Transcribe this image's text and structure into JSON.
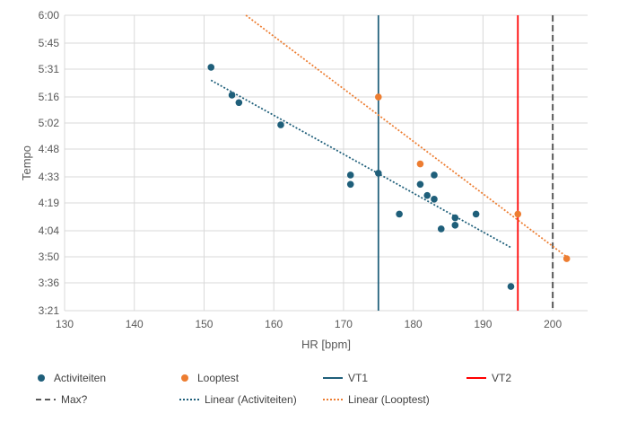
{
  "chart_data": {
    "type": "scatter",
    "xlabel": "HR [bpm]",
    "ylabel": "Tempo",
    "xlim": [
      130,
      205
    ],
    "ylim_seconds": [
      201,
      360
    ],
    "x_ticks": [
      130,
      140,
      150,
      160,
      170,
      180,
      190,
      200
    ],
    "y_ticks": [
      {
        "label": "6:00",
        "seconds": 360
      },
      {
        "label": "5:45",
        "seconds": 345
      },
      {
        "label": "5:31",
        "seconds": 331
      },
      {
        "label": "5:16",
        "seconds": 316
      },
      {
        "label": "5:02",
        "seconds": 302
      },
      {
        "label": "4:48",
        "seconds": 288
      },
      {
        "label": "4:33",
        "seconds": 273
      },
      {
        "label": "4:19",
        "seconds": 259
      },
      {
        "label": "4:04",
        "seconds": 244
      },
      {
        "label": "3:50",
        "seconds": 230
      },
      {
        "label": "3:36",
        "seconds": 216
      },
      {
        "label": "3:21",
        "seconds": 201
      }
    ],
    "grid": true,
    "legend_position": "bottom",
    "series": [
      {
        "name": "Activiteiten",
        "kind": "points",
        "color": "#1F5F7A",
        "points": [
          [
            151,
            332
          ],
          [
            154,
            317
          ],
          [
            155,
            313
          ],
          [
            161,
            301
          ],
          [
            171,
            274
          ],
          [
            171,
            269
          ],
          [
            175,
            275
          ],
          [
            178,
            253
          ],
          [
            181,
            269
          ],
          [
            182,
            263
          ],
          [
            183,
            274
          ],
          [
            183,
            261
          ],
          [
            184,
            245
          ],
          [
            186,
            251
          ],
          [
            186,
            247
          ],
          [
            189,
            253
          ],
          [
            194,
            214
          ]
        ]
      },
      {
        "name": "Looptest",
        "kind": "points",
        "color": "#ED7D31",
        "points": [
          [
            175,
            316
          ],
          [
            181,
            280
          ],
          [
            195,
            253
          ],
          [
            202,
            229
          ]
        ]
      },
      {
        "name": "VT1",
        "kind": "vline",
        "color": "#1F5F7A",
        "x": 175
      },
      {
        "name": "VT2",
        "kind": "vline",
        "color": "#FF0000",
        "x": 195
      },
      {
        "name": "Max?",
        "kind": "vline-dashed",
        "color": "#595959",
        "x": 200
      },
      {
        "name": "Linear (Activiteiten)",
        "kind": "trendline",
        "color": "#1F5F7A",
        "from": [
          151,
          325
        ],
        "to": [
          194,
          235
        ]
      },
      {
        "name": "Linear (Looptest)",
        "kind": "trendline",
        "color": "#ED7D31",
        "from": [
          156,
          360
        ],
        "to": [
          202,
          230
        ]
      }
    ]
  }
}
